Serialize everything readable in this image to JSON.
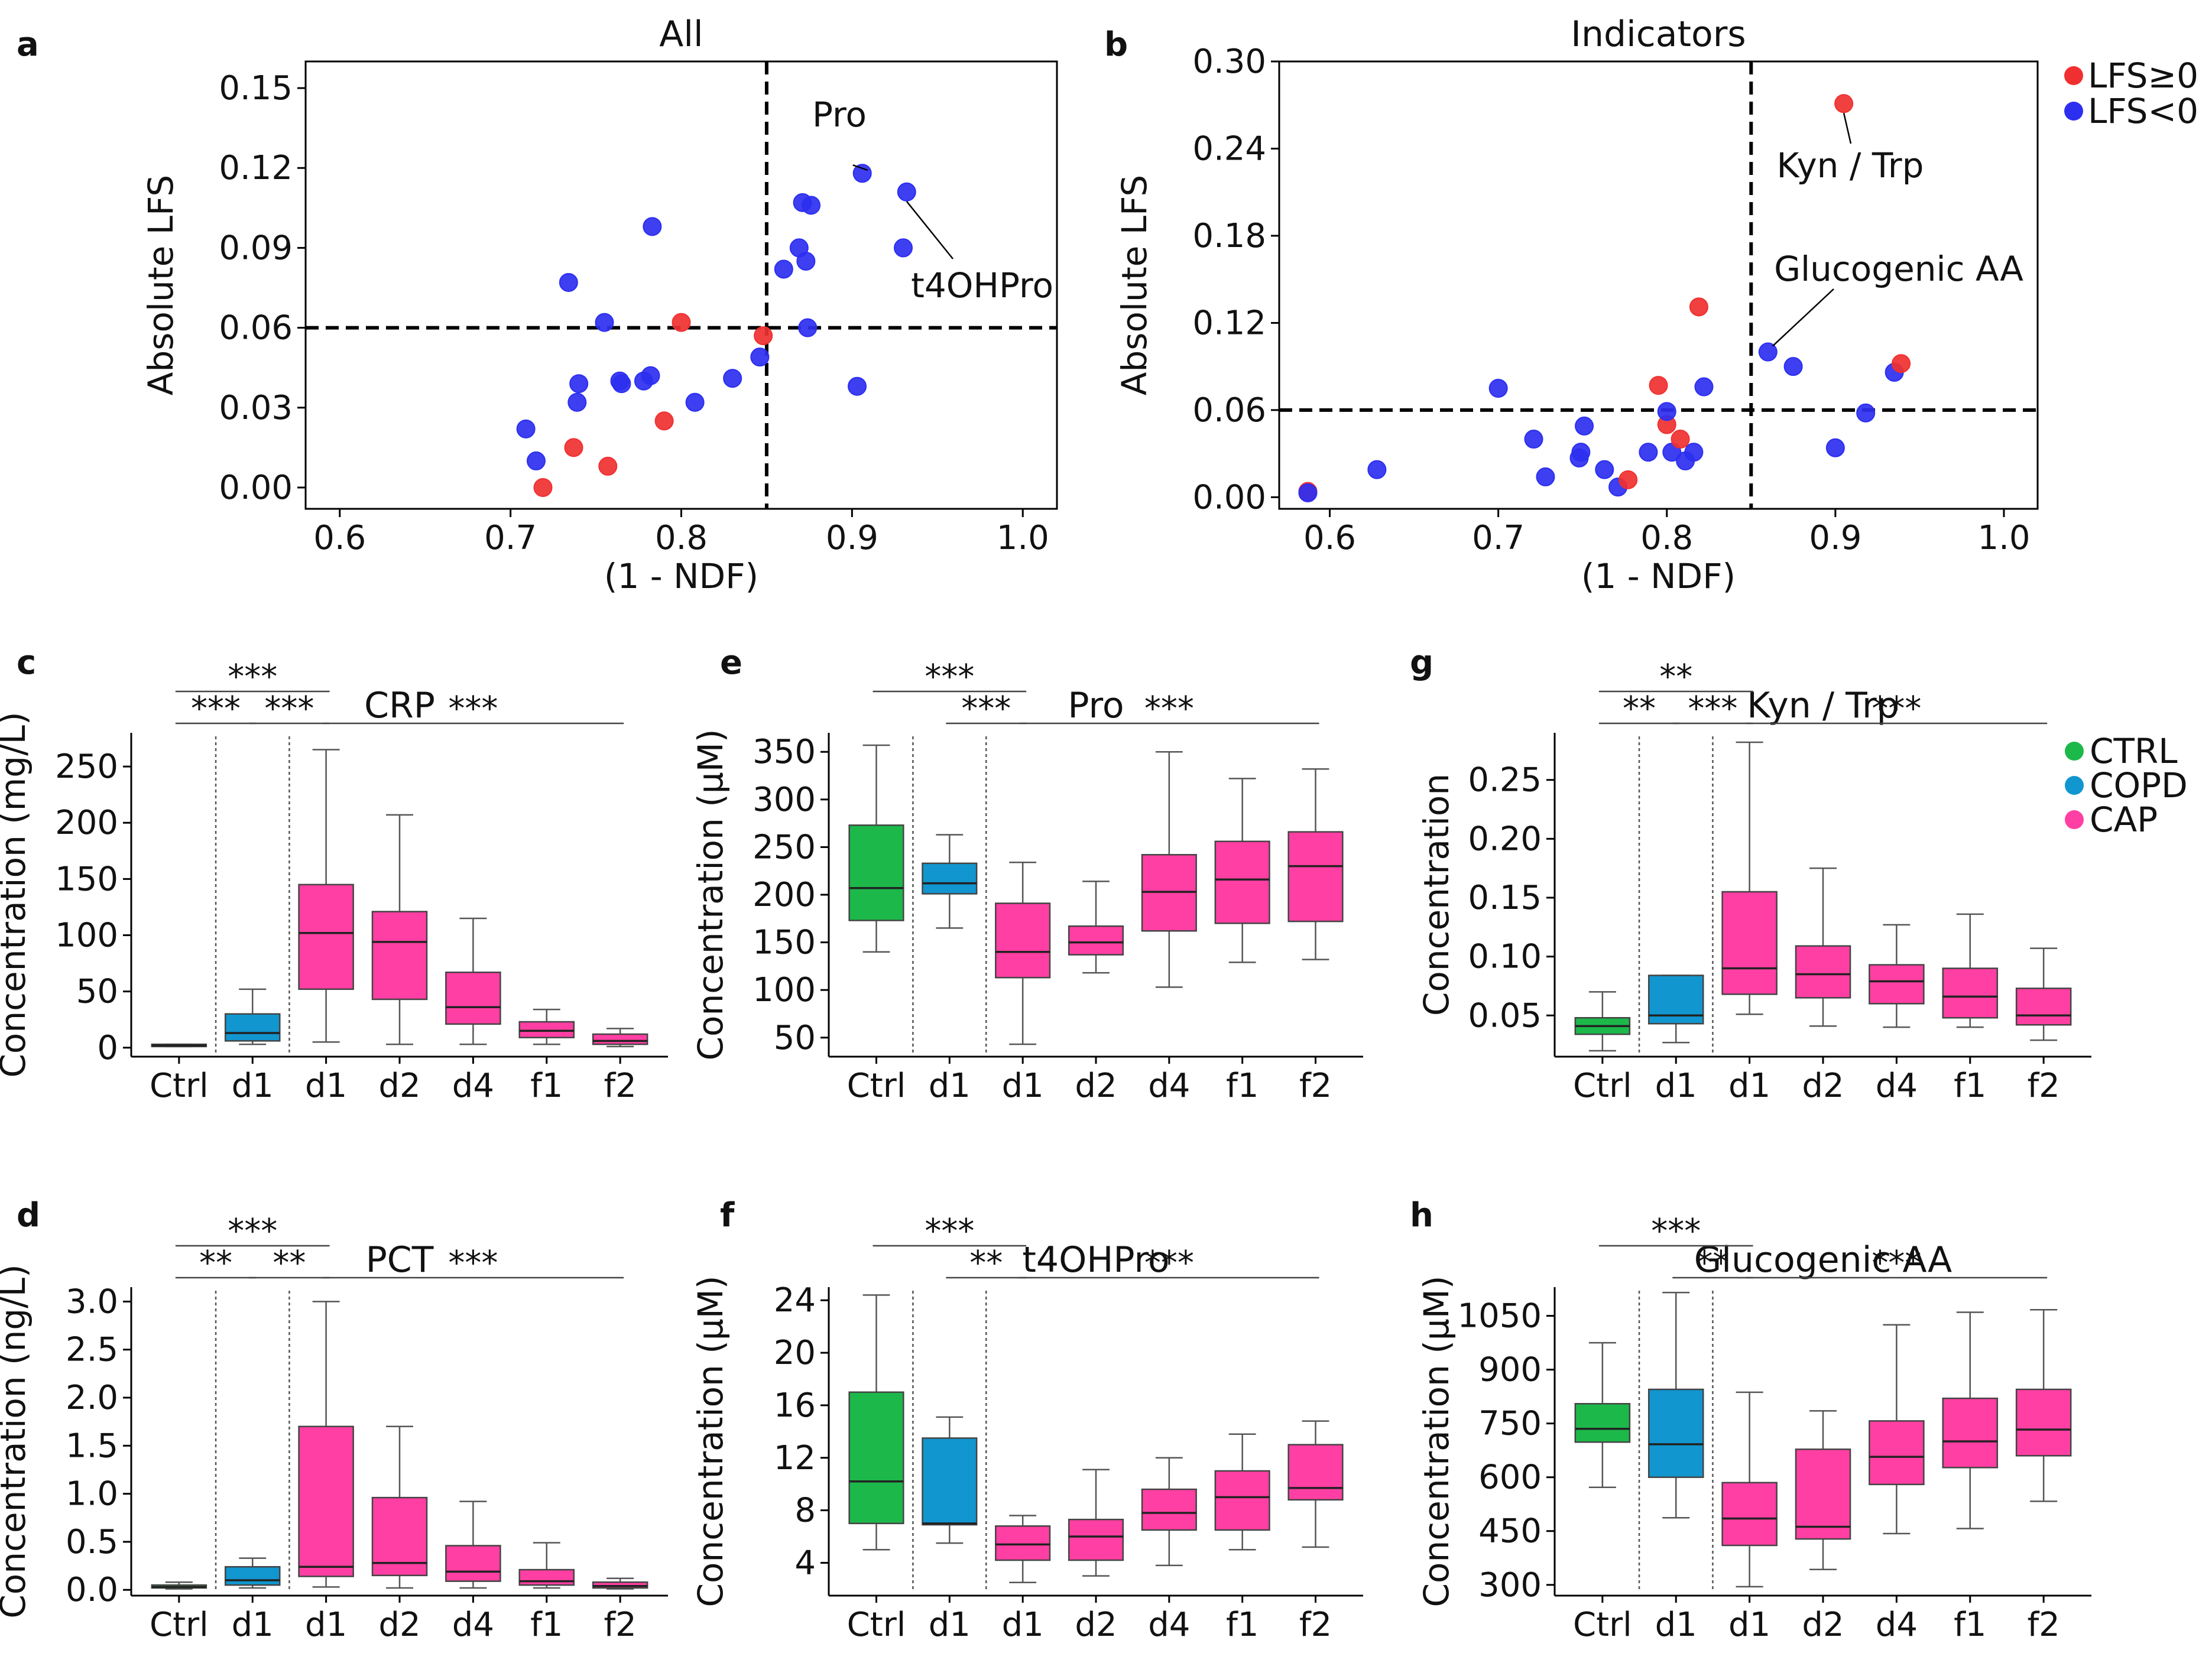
{
  "colors": {
    "ctrl": "#1db84a",
    "copd": "#1196cf",
    "cap": "#ff3fa3",
    "lfs_pos": "#f03030",
    "lfs_neg": "#2c2ff0"
  },
  "chart_data": [
    {
      "id": "a",
      "panel_label": "a",
      "type": "scatter",
      "title": "All",
      "xlabel": "(1 - NDF)",
      "ylabel": "Absolute LFS",
      "xlim": [
        0.58,
        1.02
      ],
      "ylim": [
        -0.008,
        0.16
      ],
      "xticks": [
        0.6,
        0.7,
        0.8,
        0.9,
        1.0
      ],
      "xtick_labels": [
        "0.6",
        "0.7",
        "0.8",
        "0.9",
        "1.0"
      ],
      "yticks": [
        0.0,
        0.03,
        0.06,
        0.09,
        0.12,
        0.15
      ],
      "ytick_labels": [
        "0.00",
        "0.03",
        "0.06",
        "0.09",
        "0.12",
        "0.15"
      ],
      "vline": 0.85,
      "hline": 0.06,
      "points": [
        {
          "x": 0.709,
          "y": 0.022,
          "g": "neg"
        },
        {
          "x": 0.715,
          "y": 0.01,
          "g": "neg"
        },
        {
          "x": 0.719,
          "y": 0.0,
          "g": "pos"
        },
        {
          "x": 0.734,
          "y": 0.077,
          "g": "neg"
        },
        {
          "x": 0.737,
          "y": 0.015,
          "g": "pos"
        },
        {
          "x": 0.739,
          "y": 0.032,
          "g": "neg"
        },
        {
          "x": 0.74,
          "y": 0.039,
          "g": "neg"
        },
        {
          "x": 0.755,
          "y": 0.062,
          "g": "neg"
        },
        {
          "x": 0.757,
          "y": 0.008,
          "g": "pos"
        },
        {
          "x": 0.764,
          "y": 0.04,
          "g": "neg"
        },
        {
          "x": 0.765,
          "y": 0.039,
          "g": "neg"
        },
        {
          "x": 0.778,
          "y": 0.04,
          "g": "neg"
        },
        {
          "x": 0.782,
          "y": 0.042,
          "g": "neg"
        },
        {
          "x": 0.783,
          "y": 0.098,
          "g": "neg"
        },
        {
          "x": 0.79,
          "y": 0.025,
          "g": "pos"
        },
        {
          "x": 0.8,
          "y": 0.062,
          "g": "pos"
        },
        {
          "x": 0.808,
          "y": 0.032,
          "g": "neg"
        },
        {
          "x": 0.83,
          "y": 0.041,
          "g": "neg"
        },
        {
          "x": 0.846,
          "y": 0.049,
          "g": "neg"
        },
        {
          "x": 0.848,
          "y": 0.057,
          "g": "pos"
        },
        {
          "x": 0.86,
          "y": 0.082,
          "g": "neg"
        },
        {
          "x": 0.869,
          "y": 0.09,
          "g": "neg"
        },
        {
          "x": 0.871,
          "y": 0.107,
          "g": "neg"
        },
        {
          "x": 0.873,
          "y": 0.085,
          "g": "neg"
        },
        {
          "x": 0.874,
          "y": 0.06,
          "g": "neg"
        },
        {
          "x": 0.876,
          "y": 0.106,
          "g": "neg"
        },
        {
          "x": 0.903,
          "y": 0.038,
          "g": "neg"
        },
        {
          "x": 0.906,
          "y": 0.118,
          "g": "neg"
        },
        {
          "x": 0.93,
          "y": 0.09,
          "g": "neg"
        },
        {
          "x": 0.932,
          "y": 0.111,
          "g": "neg"
        }
      ],
      "annotations": [
        {
          "text": "Pro",
          "x": 0.906,
          "y": 0.118
        },
        {
          "text": "t4OHPro",
          "x": 0.932,
          "y": 0.111
        }
      ]
    },
    {
      "id": "b",
      "panel_label": "b",
      "type": "scatter",
      "title": "Indicators",
      "xlabel": "(1 - NDF)",
      "ylabel": "Absolute LFS",
      "xlim": [
        0.57,
        1.02
      ],
      "ylim": [
        -0.008,
        0.3
      ],
      "xticks": [
        0.6,
        0.7,
        0.8,
        0.9,
        1.0
      ],
      "xtick_labels": [
        "0.6",
        "0.7",
        "0.8",
        "0.9",
        "1.0"
      ],
      "yticks": [
        0.0,
        0.06,
        0.12,
        0.18,
        0.24,
        0.3
      ],
      "ytick_labels": [
        "0.00",
        "0.06",
        "0.12",
        "0.18",
        "0.24",
        "0.30"
      ],
      "vline": 0.85,
      "hline": 0.06,
      "points": [
        {
          "x": 0.587,
          "y": 0.004,
          "g": "pos"
        },
        {
          "x": 0.587,
          "y": 0.003,
          "g": "neg"
        },
        {
          "x": 0.628,
          "y": 0.019,
          "g": "neg"
        },
        {
          "x": 0.7,
          "y": 0.075,
          "g": "neg"
        },
        {
          "x": 0.721,
          "y": 0.04,
          "g": "neg"
        },
        {
          "x": 0.728,
          "y": 0.014,
          "g": "neg"
        },
        {
          "x": 0.748,
          "y": 0.027,
          "g": "neg"
        },
        {
          "x": 0.749,
          "y": 0.031,
          "g": "neg"
        },
        {
          "x": 0.751,
          "y": 0.049,
          "g": "neg"
        },
        {
          "x": 0.763,
          "y": 0.019,
          "g": "neg"
        },
        {
          "x": 0.771,
          "y": 0.007,
          "g": "neg"
        },
        {
          "x": 0.777,
          "y": 0.012,
          "g": "pos"
        },
        {
          "x": 0.789,
          "y": 0.031,
          "g": "neg"
        },
        {
          "x": 0.795,
          "y": 0.077,
          "g": "pos"
        },
        {
          "x": 0.8,
          "y": 0.05,
          "g": "pos"
        },
        {
          "x": 0.8,
          "y": 0.059,
          "g": "neg"
        },
        {
          "x": 0.803,
          "y": 0.031,
          "g": "neg"
        },
        {
          "x": 0.808,
          "y": 0.04,
          "g": "pos"
        },
        {
          "x": 0.811,
          "y": 0.025,
          "g": "neg"
        },
        {
          "x": 0.816,
          "y": 0.031,
          "g": "neg"
        },
        {
          "x": 0.819,
          "y": 0.131,
          "g": "pos"
        },
        {
          "x": 0.822,
          "y": 0.076,
          "g": "neg"
        },
        {
          "x": 0.86,
          "y": 0.1,
          "g": "neg"
        },
        {
          "x": 0.875,
          "y": 0.09,
          "g": "neg"
        },
        {
          "x": 0.9,
          "y": 0.034,
          "g": "neg"
        },
        {
          "x": 0.905,
          "y": 0.271,
          "g": "pos"
        },
        {
          "x": 0.918,
          "y": 0.058,
          "g": "neg"
        },
        {
          "x": 0.935,
          "y": 0.086,
          "g": "neg"
        },
        {
          "x": 0.939,
          "y": 0.092,
          "g": "pos"
        }
      ],
      "annotations": [
        {
          "text": "Kyn / Trp",
          "x": 0.905,
          "y": 0.271
        },
        {
          "text": "Glucogenic AA",
          "x": 0.86,
          "y": 0.1
        }
      ],
      "legend": [
        {
          "label": "LFS≥0",
          "g": "pos"
        },
        {
          "label": "LFS<0",
          "g": "neg"
        }
      ]
    },
    {
      "id": "c",
      "panel_label": "c",
      "type": "box",
      "title": "CRP",
      "ylabel": "Concentration (mg/L)",
      "ylim": [
        -8,
        280
      ],
      "yticks": [
        0,
        50,
        100,
        150,
        200,
        250
      ],
      "ytick_labels": [
        "0",
        "50",
        "100",
        "150",
        "200",
        "250"
      ],
      "categories": [
        "Ctrl",
        "d1",
        "d1",
        "d2",
        "d4",
        "f1",
        "f2"
      ],
      "groups": [
        "ctrl",
        "copd",
        "cap",
        "cap",
        "cap",
        "cap",
        "cap"
      ],
      "boxes": [
        {
          "wl": 1,
          "q1": 1,
          "med": 2,
          "q3": 3,
          "wh": 3
        },
        {
          "wl": 3,
          "q1": 6,
          "med": 13,
          "q3": 30,
          "wh": 52
        },
        {
          "wl": 5,
          "q1": 52,
          "med": 102,
          "q3": 145,
          "wh": 265
        },
        {
          "wl": 3,
          "q1": 43,
          "med": 94,
          "q3": 121,
          "wh": 207
        },
        {
          "wl": 3,
          "q1": 21,
          "med": 36,
          "q3": 67,
          "wh": 115
        },
        {
          "wl": 3,
          "q1": 9,
          "med": 15,
          "q3": 23,
          "wh": 34
        },
        {
          "wl": 1,
          "q1": 3,
          "med": 6,
          "q3": 12,
          "wh": 17
        }
      ],
      "significance": [
        {
          "from": 0,
          "to": 2,
          "label": "***",
          "level": 2
        },
        {
          "from": 0,
          "to": 1,
          "label": "***",
          "level": 1
        },
        {
          "from": 1,
          "to": 2,
          "label": "***",
          "level": 1
        },
        {
          "from": 2,
          "to": 6,
          "label": "***",
          "level": 1
        }
      ]
    },
    {
      "id": "d",
      "panel_label": "d",
      "type": "box",
      "title": "PCT",
      "ylabel": "Concentration (ng/L)",
      "ylim": [
        -0.06,
        3.15
      ],
      "yticks": [
        0.0,
        0.5,
        1.0,
        1.5,
        2.0,
        2.5,
        3.0
      ],
      "ytick_labels": [
        "0.0",
        "0.5",
        "1.0",
        "1.5",
        "2.0",
        "2.5",
        "3.0"
      ],
      "categories": [
        "Ctrl",
        "d1",
        "d1",
        "d2",
        "d4",
        "f1",
        "f2"
      ],
      "groups": [
        "ctrl",
        "copd",
        "cap",
        "cap",
        "cap",
        "cap",
        "cap"
      ],
      "boxes": [
        {
          "wl": 0.01,
          "q1": 0.02,
          "med": 0.03,
          "q3": 0.05,
          "wh": 0.08
        },
        {
          "wl": 0.02,
          "q1": 0.05,
          "med": 0.1,
          "q3": 0.24,
          "wh": 0.33
        },
        {
          "wl": 0.03,
          "q1": 0.14,
          "med": 0.24,
          "q3": 1.7,
          "wh": 3.0
        },
        {
          "wl": 0.02,
          "q1": 0.15,
          "med": 0.28,
          "q3": 0.96,
          "wh": 1.7
        },
        {
          "wl": 0.02,
          "q1": 0.09,
          "med": 0.19,
          "q3": 0.46,
          "wh": 0.92
        },
        {
          "wl": 0.02,
          "q1": 0.05,
          "med": 0.09,
          "q3": 0.21,
          "wh": 0.49
        },
        {
          "wl": 0.01,
          "q1": 0.02,
          "med": 0.04,
          "q3": 0.08,
          "wh": 0.12
        }
      ],
      "significance": [
        {
          "from": 0,
          "to": 2,
          "label": "***",
          "level": 2
        },
        {
          "from": 0,
          "to": 1,
          "label": "**",
          "level": 1
        },
        {
          "from": 1,
          "to": 2,
          "label": "**",
          "level": 1
        },
        {
          "from": 2,
          "to": 6,
          "label": "***",
          "level": 1
        }
      ]
    },
    {
      "id": "e",
      "panel_label": "e",
      "type": "box",
      "title": "Pro",
      "ylabel": "Concentration (μM)",
      "ylim": [
        30,
        370
      ],
      "yticks": [
        50,
        100,
        150,
        200,
        250,
        300,
        350
      ],
      "ytick_labels": [
        "50",
        "100",
        "150",
        "200",
        "250",
        "300",
        "350"
      ],
      "categories": [
        "Ctrl",
        "d1",
        "d1",
        "d2",
        "d4",
        "f1",
        "f2"
      ],
      "groups": [
        "ctrl",
        "copd",
        "cap",
        "cap",
        "cap",
        "cap",
        "cap"
      ],
      "boxes": [
        {
          "wl": 140,
          "q1": 173,
          "med": 207,
          "q3": 273,
          "wh": 357
        },
        {
          "wl": 165,
          "q1": 201,
          "med": 212,
          "q3": 233,
          "wh": 263
        },
        {
          "wl": 43,
          "q1": 113,
          "med": 140,
          "q3": 191,
          "wh": 234
        },
        {
          "wl": 118,
          "q1": 137,
          "med": 150,
          "q3": 167,
          "wh": 214
        },
        {
          "wl": 103,
          "q1": 162,
          "med": 203,
          "q3": 242,
          "wh": 350
        },
        {
          "wl": 129,
          "q1": 170,
          "med": 216,
          "q3": 256,
          "wh": 322
        },
        {
          "wl": 132,
          "q1": 172,
          "med": 230,
          "q3": 266,
          "wh": 332
        }
      ],
      "significance": [
        {
          "from": 0,
          "to": 2,
          "label": "***",
          "level": 2
        },
        {
          "from": 1,
          "to": 2,
          "label": "***",
          "level": 1
        },
        {
          "from": 2,
          "to": 6,
          "label": "***",
          "level": 1
        }
      ]
    },
    {
      "id": "f",
      "panel_label": "f",
      "type": "box",
      "title": "t4OHPro",
      "ylabel": "Concentration (μM)",
      "ylim": [
        1.5,
        25
      ],
      "yticks": [
        4,
        8,
        12,
        16,
        20,
        24
      ],
      "ytick_labels": [
        "4",
        "8",
        "12",
        "16",
        "20",
        "24"
      ],
      "categories": [
        "Ctrl",
        "d1",
        "d1",
        "d2",
        "d4",
        "f1",
        "f2"
      ],
      "groups": [
        "ctrl",
        "copd",
        "cap",
        "cap",
        "cap",
        "cap",
        "cap"
      ],
      "boxes": [
        {
          "wl": 5.0,
          "q1": 7.0,
          "med": 10.2,
          "q3": 17.0,
          "wh": 24.4
        },
        {
          "wl": 5.5,
          "q1": 6.9,
          "med": 7.0,
          "q3": 13.5,
          "wh": 15.1
        },
        {
          "wl": 2.5,
          "q1": 4.2,
          "med": 5.4,
          "q3": 6.8,
          "wh": 7.6
        },
        {
          "wl": 3.0,
          "q1": 4.2,
          "med": 6.0,
          "q3": 7.3,
          "wh": 11.1
        },
        {
          "wl": 3.8,
          "q1": 6.5,
          "med": 7.8,
          "q3": 9.6,
          "wh": 12.0
        },
        {
          "wl": 5.0,
          "q1": 6.5,
          "med": 9.0,
          "q3": 11.0,
          "wh": 13.8
        },
        {
          "wl": 5.2,
          "q1": 8.8,
          "med": 9.7,
          "q3": 13.0,
          "wh": 14.8
        }
      ],
      "significance": [
        {
          "from": 0,
          "to": 2,
          "label": "***",
          "level": 2
        },
        {
          "from": 1,
          "to": 2,
          "label": "**",
          "level": 1
        },
        {
          "from": 2,
          "to": 6,
          "label": "***",
          "level": 1
        }
      ]
    },
    {
      "id": "g",
      "panel_label": "g",
      "type": "box",
      "title": "Kyn / Trp",
      "ylabel": "Concentration",
      "ylim": [
        0.015,
        0.29
      ],
      "yticks": [
        0.05,
        0.1,
        0.15,
        0.2,
        0.25
      ],
      "ytick_labels": [
        "0.05",
        "0.10",
        "0.15",
        "0.20",
        "0.25"
      ],
      "categories": [
        "Ctrl",
        "d1",
        "d1",
        "d2",
        "d4",
        "f1",
        "f2"
      ],
      "groups": [
        "ctrl",
        "copd",
        "cap",
        "cap",
        "cap",
        "cap",
        "cap"
      ],
      "boxes": [
        {
          "wl": 0.02,
          "q1": 0.034,
          "med": 0.041,
          "q3": 0.048,
          "wh": 0.07
        },
        {
          "wl": 0.027,
          "q1": 0.043,
          "med": 0.05,
          "q3": 0.084,
          "wh": 0.084
        },
        {
          "wl": 0.051,
          "q1": 0.068,
          "med": 0.09,
          "q3": 0.155,
          "wh": 0.282
        },
        {
          "wl": 0.041,
          "q1": 0.065,
          "med": 0.085,
          "q3": 0.109,
          "wh": 0.175
        },
        {
          "wl": 0.04,
          "q1": 0.06,
          "med": 0.079,
          "q3": 0.093,
          "wh": 0.127
        },
        {
          "wl": 0.04,
          "q1": 0.048,
          "med": 0.066,
          "q3": 0.09,
          "wh": 0.136
        },
        {
          "wl": 0.029,
          "q1": 0.042,
          "med": 0.05,
          "q3": 0.073,
          "wh": 0.107
        }
      ],
      "significance": [
        {
          "from": 0,
          "to": 2,
          "label": "**",
          "level": 2
        },
        {
          "from": 0,
          "to": 1,
          "label": "**",
          "level": 1
        },
        {
          "from": 1,
          "to": 2,
          "label": "***",
          "level": 1
        },
        {
          "from": 2,
          "to": 6,
          "label": "***",
          "level": 1
        }
      ],
      "legend": [
        {
          "label": "CTRL",
          "g": "ctrl"
        },
        {
          "label": "COPD",
          "g": "copd"
        },
        {
          "label": "CAP",
          "g": "cap"
        }
      ]
    },
    {
      "id": "h",
      "panel_label": "h",
      "type": "box",
      "title": "Glucogenic AA",
      "ylabel": "Concentration (μM)",
      "ylim": [
        270,
        1130
      ],
      "yticks": [
        300,
        450,
        600,
        750,
        900,
        1050
      ],
      "ytick_labels": [
        "300",
        "450",
        "600",
        "750",
        "900",
        "1050"
      ],
      "categories": [
        "Ctrl",
        "d1",
        "d1",
        "d2",
        "d4",
        "f1",
        "f2"
      ],
      "groups": [
        "ctrl",
        "copd",
        "cap",
        "cap",
        "cap",
        "cap",
        "cap"
      ],
      "boxes": [
        {
          "wl": 572,
          "q1": 698,
          "med": 735,
          "q3": 805,
          "wh": 975
        },
        {
          "wl": 487,
          "q1": 600,
          "med": 692,
          "q3": 845,
          "wh": 1115
        },
        {
          "wl": 295,
          "q1": 410,
          "med": 485,
          "q3": 585,
          "wh": 837
        },
        {
          "wl": 343,
          "q1": 428,
          "med": 462,
          "q3": 678,
          "wh": 785
        },
        {
          "wl": 443,
          "q1": 580,
          "med": 657,
          "q3": 757,
          "wh": 1025
        },
        {
          "wl": 457,
          "q1": 627,
          "med": 700,
          "q3": 820,
          "wh": 1060
        },
        {
          "wl": 533,
          "q1": 660,
          "med": 733,
          "q3": 845,
          "wh": 1067
        }
      ],
      "significance": [
        {
          "from": 0,
          "to": 2,
          "label": "***",
          "level": 2
        },
        {
          "from": 1,
          "to": 2,
          "label": "**",
          "level": 1
        },
        {
          "from": 2,
          "to": 6,
          "label": "***",
          "level": 1
        }
      ]
    }
  ]
}
